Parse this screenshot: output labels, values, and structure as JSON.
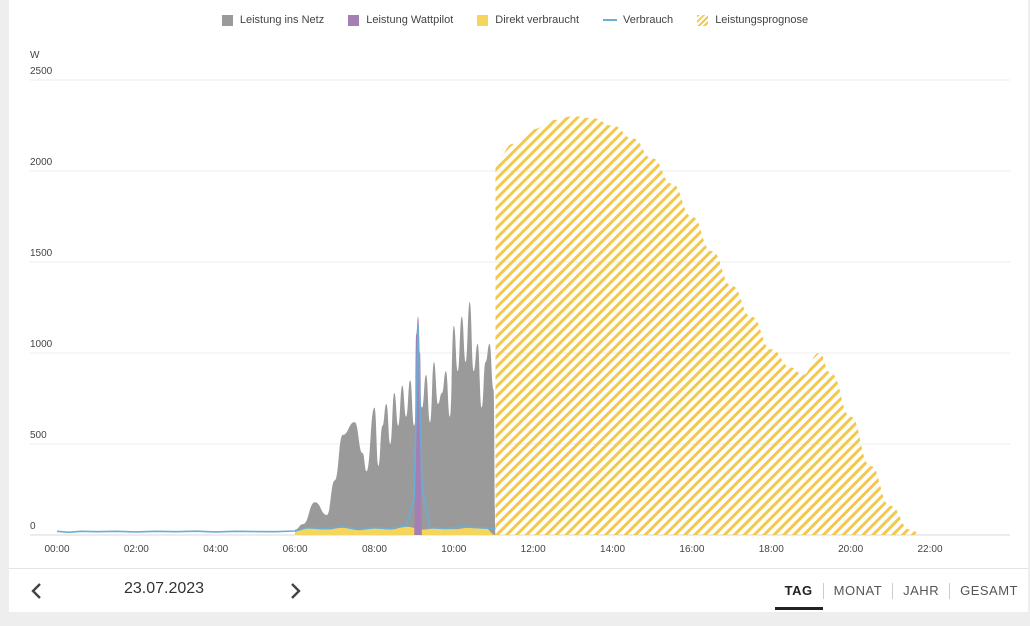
{
  "colors": {
    "netz": "#9a9a9a",
    "wattpilot": "#a47fb3",
    "direkt": "#f6d55c",
    "verbrauch": "#6aaed6",
    "prognose": "#f2c94c",
    "grid": "#ececec",
    "axis_text": "#444444"
  },
  "legend": [
    {
      "label": "Leistung ins Netz",
      "kind": "square",
      "color": "#9a9a9a"
    },
    {
      "label": "Leistung Wattpilot",
      "kind": "square",
      "color": "#a47fb3"
    },
    {
      "label": "Direkt verbraucht",
      "kind": "square",
      "color": "#f6d55c"
    },
    {
      "label": "Verbrauch",
      "kind": "line",
      "color": "#6aaed6"
    },
    {
      "label": "Leistungsprognose",
      "kind": "hatch",
      "color": "#f2c94c"
    }
  ],
  "chart_data": {
    "type": "area",
    "ylabel": "W",
    "ylim": [
      0,
      2500
    ],
    "yticks": [
      "0",
      "500",
      "1000",
      "1500",
      "2000",
      "2500"
    ],
    "xlim_hours": [
      0,
      24
    ],
    "xticks": [
      "00:00",
      "02:00",
      "04:00",
      "06:00",
      "08:00",
      "10:00",
      "12:00",
      "14:00",
      "16:00",
      "18:00",
      "20:00",
      "22:00"
    ],
    "grid": true,
    "legend_position": "top",
    "series": [
      {
        "name": "Leistung ins Netz",
        "x": [
          6.0,
          6.2,
          6.5,
          6.8,
          7.0,
          7.2,
          7.5,
          7.7,
          7.8,
          8.0,
          8.1,
          8.2,
          8.3,
          8.4,
          8.5,
          8.6,
          8.7,
          8.8,
          8.9,
          9.0,
          9.1,
          9.2,
          9.3,
          9.4,
          9.5,
          9.6,
          9.7,
          9.8,
          9.9,
          10.0,
          10.1,
          10.2,
          10.3,
          10.4,
          10.5,
          10.6,
          10.7,
          10.8,
          10.9,
          11.0,
          11.05
        ],
        "values": [
          30,
          60,
          180,
          110,
          300,
          550,
          620,
          450,
          350,
          700,
          380,
          600,
          720,
          500,
          780,
          600,
          820,
          650,
          850,
          600,
          800,
          700,
          880,
          620,
          950,
          720,
          780,
          900,
          650,
          1150,
          900,
          1200,
          950,
          1280,
          900,
          1050,
          700,
          950,
          1050,
          800,
          0
        ]
      },
      {
        "name": "Leistung Wattpilot",
        "x": [
          9.0,
          9.05,
          9.1,
          9.15,
          9.2
        ],
        "values": [
          0,
          1100,
          1200,
          1000,
          0
        ]
      },
      {
        "name": "Direkt verbraucht",
        "x": [
          6.0,
          6.3,
          6.8,
          7.2,
          7.6,
          8.0,
          8.4,
          8.8,
          9.2,
          9.6,
          10.0,
          10.4,
          10.8,
          11.05
        ],
        "values": [
          20,
          35,
          30,
          40,
          28,
          35,
          30,
          45,
          30,
          38,
          32,
          40,
          35,
          0
        ]
      },
      {
        "name": "Verbrauch",
        "x": [
          0,
          0.3,
          0.6,
          1,
          1.5,
          2,
          2.5,
          3,
          3.5,
          4,
          4.5,
          5,
          5.5,
          6,
          6.3,
          6.8,
          7.2,
          7.6,
          8.0,
          8.4,
          8.8,
          9.0,
          9.1,
          9.2,
          9.4,
          9.8,
          10.2,
          10.6,
          11.05
        ],
        "values": [
          20,
          15,
          20,
          18,
          20,
          17,
          20,
          18,
          21,
          17,
          20,
          19,
          18,
          22,
          40,
          35,
          45,
          30,
          40,
          35,
          50,
          200,
          1150,
          250,
          40,
          35,
          45,
          40,
          35
        ]
      },
      {
        "name": "Leistungsprognose",
        "x": [
          11.05,
          11.5,
          12,
          12.5,
          13,
          13.5,
          14,
          14.5,
          15,
          15.5,
          16,
          16.5,
          17,
          17.5,
          18,
          18.5,
          18.8,
          19.2,
          19.5,
          20,
          20.5,
          21,
          21.5,
          21.8
        ],
        "values": [
          2050,
          2150,
          2230,
          2280,
          2300,
          2290,
          2250,
          2180,
          2070,
          1930,
          1750,
          1560,
          1370,
          1200,
          1020,
          920,
          880,
          1000,
          890,
          650,
          380,
          160,
          30,
          0
        ]
      }
    ]
  },
  "footer": {
    "date": "23.07.2023",
    "tabs": [
      "TAG",
      "MONAT",
      "JAHR",
      "GESAMT"
    ],
    "active_tab": "TAG"
  }
}
